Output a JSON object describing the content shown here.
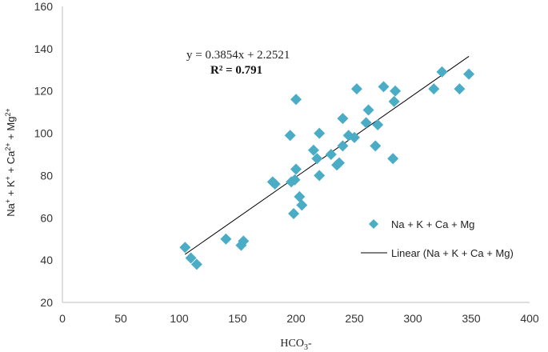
{
  "chart_data": {
    "type": "scatter",
    "title": "",
    "xlabel": "HCO3-",
    "ylabel": "Na+ + K+ + Ca2+ + Mg2+",
    "xlim": [
      0,
      400
    ],
    "ylim": [
      20,
      160
    ],
    "xticks": [
      "0",
      "50",
      "100",
      "150",
      "200",
      "250",
      "300",
      "350",
      "400"
    ],
    "yticks": [
      "20",
      "40",
      "60",
      "80",
      "100",
      "120",
      "140",
      "160"
    ],
    "grid": false,
    "legend_position": "right",
    "series": [
      {
        "name": "Na + K + Ca + Mg",
        "color": "#4bacc6",
        "marker": "diamond",
        "points": [
          [
            105,
            46
          ],
          [
            110,
            41
          ],
          [
            115,
            38
          ],
          [
            140,
            50
          ],
          [
            153,
            47
          ],
          [
            155,
            49
          ],
          [
            180,
            77
          ],
          [
            182,
            76
          ],
          [
            195,
            99
          ],
          [
            196,
            77
          ],
          [
            198,
            62
          ],
          [
            199,
            78
          ],
          [
            200,
            83
          ],
          [
            200,
            116
          ],
          [
            203,
            70
          ],
          [
            205,
            66
          ],
          [
            215,
            92
          ],
          [
            218,
            88
          ],
          [
            220,
            80
          ],
          [
            220,
            100
          ],
          [
            230,
            90
          ],
          [
            235,
            85
          ],
          [
            237,
            86
          ],
          [
            240,
            94
          ],
          [
            240,
            107
          ],
          [
            245,
            99
          ],
          [
            250,
            98
          ],
          [
            252,
            121
          ],
          [
            260,
            105
          ],
          [
            262,
            111
          ],
          [
            268,
            94
          ],
          [
            270,
            104
          ],
          [
            275,
            122
          ],
          [
            283,
            88
          ],
          [
            284,
            115
          ],
          [
            285,
            120
          ],
          [
            318,
            121
          ],
          [
            325,
            129
          ],
          [
            340,
            121
          ],
          [
            348,
            128
          ]
        ]
      }
    ],
    "trendline": {
      "name": "Linear (Na + K + Ca + Mg)",
      "slope": 0.3854,
      "intercept": 2.2521,
      "x_range": [
        105,
        348
      ],
      "color": "#000000"
    },
    "annotations": {
      "equation": "y = 0.3854x  + 2.2521",
      "r_squared": "R² = 0.791"
    }
  }
}
